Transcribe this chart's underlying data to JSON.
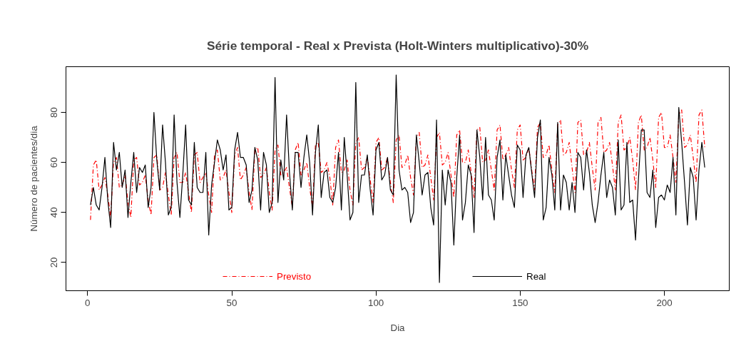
{
  "chart_data": {
    "type": "line",
    "title": "Série temporal - Real x Prevista (Holt-Winters multiplicativo)-30%",
    "xlabel": "Dia",
    "ylabel": "Número de pacientes/dia",
    "x": [
      1,
      2,
      3,
      4,
      5,
      6,
      7,
      8,
      9,
      10,
      11,
      12,
      13,
      14,
      15,
      16,
      17,
      18,
      19,
      20,
      21,
      22,
      23,
      24,
      25,
      26,
      27,
      28,
      29,
      30,
      31,
      32,
      33,
      34,
      35,
      36,
      37,
      38,
      39,
      40,
      41,
      42,
      43,
      44,
      45,
      46,
      47,
      48,
      49,
      50,
      51,
      52,
      53,
      54,
      55,
      56,
      57,
      58,
      59,
      60,
      61,
      62,
      63,
      64,
      65,
      66,
      67,
      68,
      69,
      70,
      71,
      72,
      73,
      74,
      75,
      76,
      77,
      78,
      79,
      80,
      81,
      82,
      83,
      84,
      85,
      86,
      87,
      88,
      89,
      90,
      91,
      92,
      93,
      94,
      95,
      96,
      97,
      98,
      99,
      100,
      101,
      102,
      103,
      104,
      105,
      106,
      107,
      108,
      109,
      110,
      111,
      112,
      113,
      114,
      115,
      116,
      117,
      118,
      119,
      120,
      121,
      122,
      123,
      124,
      125,
      126,
      127,
      128,
      129,
      130,
      131,
      132,
      133,
      134,
      135,
      136,
      137,
      138,
      139,
      140,
      141,
      142,
      143,
      144,
      145,
      146,
      147,
      148,
      149,
      150,
      151,
      152,
      153,
      154,
      155,
      156,
      157,
      158,
      159,
      160,
      161,
      162,
      163,
      164,
      165,
      166,
      167,
      168,
      169,
      170,
      171,
      172,
      173,
      174,
      175,
      176,
      177,
      178,
      179,
      180,
      181,
      182,
      183,
      184,
      185,
      186,
      187,
      188,
      189,
      190,
      191,
      192,
      193,
      194,
      195,
      196,
      197,
      198,
      199,
      200,
      201,
      202,
      203,
      204,
      205,
      206,
      207,
      208,
      209,
      210,
      211,
      212,
      213,
      214
    ],
    "series": [
      {
        "name": "Previsto",
        "color": "#ff0000",
        "line_style": "dashdot",
        "values": [
          37,
          59,
          61,
          49,
          51,
          54,
          47,
          38,
          60,
          62,
          50,
          51,
          55,
          44,
          38,
          61,
          62,
          51,
          52,
          55,
          45,
          39,
          62,
          63,
          49,
          50,
          56,
          47,
          39,
          62,
          64,
          52,
          52,
          56,
          48,
          40,
          63,
          64,
          52,
          54,
          56,
          47,
          40,
          63,
          65,
          53,
          54,
          57,
          48,
          40,
          63,
          66,
          53,
          55,
          58,
          48,
          41,
          65,
          66,
          54,
          55,
          58,
          48,
          41,
          65,
          67,
          55,
          56,
          58,
          50,
          42,
          65,
          68,
          55,
          57,
          60,
          50,
          42,
          67,
          68,
          56,
          57,
          60,
          54,
          43,
          66,
          69,
          56,
          57,
          61,
          49,
          43,
          68,
          70,
          57,
          58,
          62,
          53,
          44,
          68,
          70,
          57,
          58,
          62,
          52,
          44,
          69,
          71,
          58,
          59,
          63,
          54,
          47,
          70,
          72,
          58,
          59,
          63,
          54,
          45,
          70,
          72,
          59,
          60,
          64,
          55,
          46,
          71,
          73,
          60,
          60,
          65,
          56,
          46,
          73,
          74,
          60,
          61,
          65,
          57,
          49,
          73,
          75,
          61,
          63,
          66,
          57,
          50,
          73,
          75,
          61,
          62,
          66,
          57,
          49,
          74,
          76,
          62,
          63,
          67,
          57,
          48,
          75,
          77,
          63,
          64,
          68,
          58,
          48,
          76,
          77,
          63,
          64,
          68,
          58,
          49,
          76,
          78,
          64,
          65,
          68,
          59,
          49,
          76,
          79,
          65,
          66,
          70,
          61,
          49,
          76,
          79,
          65,
          66,
          70,
          61,
          50,
          78,
          80,
          66,
          66,
          71,
          62,
          52,
          79,
          81,
          66,
          67,
          71,
          62,
          52,
          79,
          81,
          66
        ]
      },
      {
        "name": "Real",
        "color": "#000000",
        "line_style": "solid",
        "values": [
          43,
          50,
          43,
          41,
          50,
          62,
          45,
          34,
          68,
          57,
          64,
          50,
          57,
          38,
          52,
          64,
          48,
          58,
          56,
          59,
          42,
          50,
          80,
          61,
          49,
          75,
          60,
          39,
          42,
          79,
          52,
          38,
          55,
          75,
          45,
          43,
          68,
          50,
          48,
          48,
          64,
          31,
          51,
          60,
          69,
          65,
          57,
          63,
          41,
          42,
          65,
          72,
          62,
          62,
          59,
          44,
          49,
          66,
          61,
          41,
          64,
          59,
          40,
          44,
          94,
          44,
          61,
          53,
          79,
          56,
          41,
          64,
          64,
          50,
          62,
          71,
          60,
          39,
          64,
          75,
          46,
          56,
          57,
          46,
          44,
          50,
          64,
          41,
          70,
          55,
          37,
          40,
          92,
          44,
          55,
          55,
          63,
          49,
          39,
          65,
          68,
          53,
          55,
          62,
          49,
          47,
          95,
          57,
          49,
          50,
          48,
          36,
          40,
          71,
          60,
          47,
          55,
          56,
          42,
          35,
          77,
          12,
          57,
          43,
          57,
          52,
          27,
          54,
          71,
          37,
          44,
          59,
          55,
          32,
          73,
          62,
          45,
          70,
          47,
          45,
          37,
          62,
          69,
          45,
          63,
          55,
          47,
          42,
          67,
          65,
          46,
          63,
          66,
          56,
          46,
          70,
          77,
          37,
          42,
          62,
          55,
          41,
          76,
          41,
          55,
          52,
          41,
          52,
          40,
          64,
          62,
          49,
          65,
          56,
          43,
          36,
          44,
          55,
          64,
          46,
          53,
          50,
          39,
          69,
          41,
          43,
          68,
          44,
          45,
          29,
          53,
          73,
          73,
          48,
          46,
          57,
          34,
          46,
          47,
          45,
          51,
          48,
          62,
          39,
          82,
          68,
          52,
          35,
          58,
          54,
          37,
          57,
          68,
          58
        ]
      }
    ],
    "xlim": [
      -7.5,
      222.5
    ],
    "ylim": [
      8.7,
      98.3
    ],
    "xticks": [
      0,
      50,
      100,
      150,
      200
    ],
    "yticks": [
      20,
      40,
      60,
      80
    ],
    "grid": false,
    "legend": "bottom"
  }
}
